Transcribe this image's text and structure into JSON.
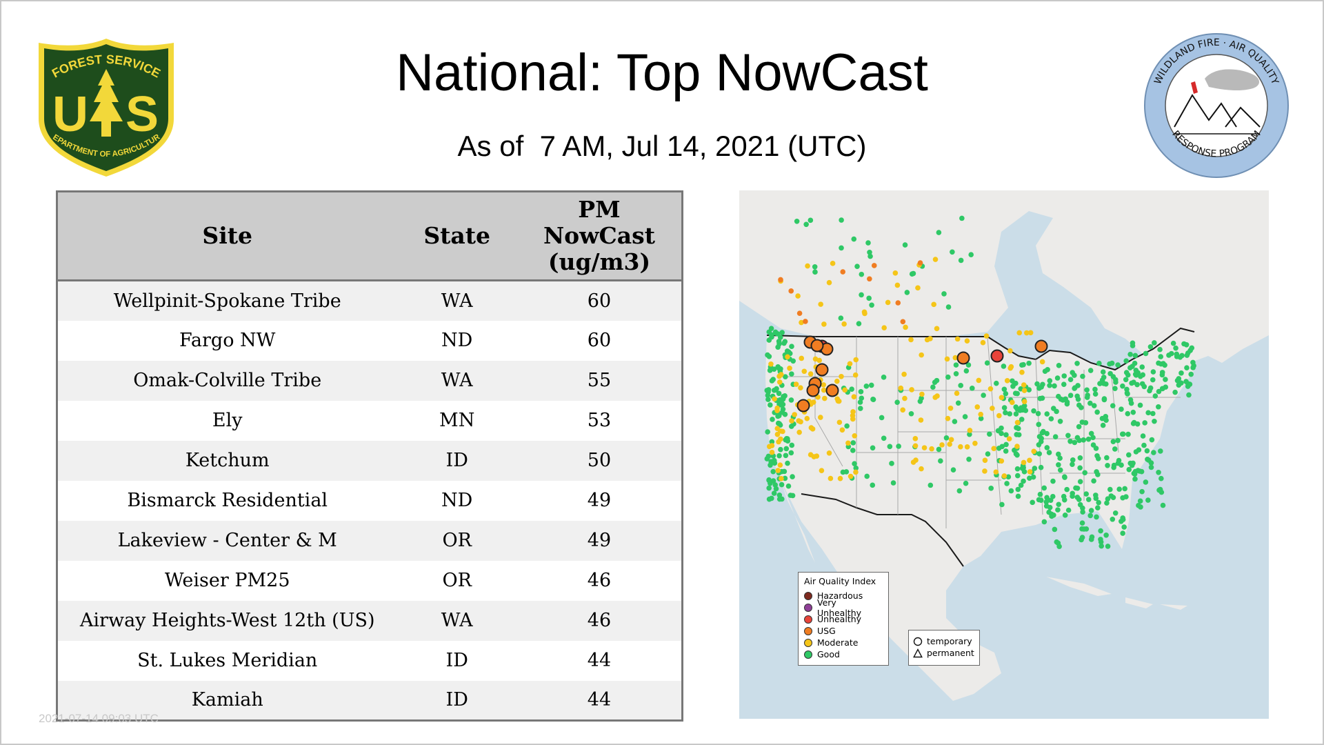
{
  "header": {
    "title": "National: Top NowCast",
    "subtitle": "As of  7 AM, Jul 14, 2021 (UTC)"
  },
  "logos": {
    "left": {
      "top_text": "FOREST SERVICE",
      "letter_left": "U",
      "letter_right": "S",
      "bottom_text": "DEPARTMENT OF AGRICULTURE",
      "color_green": "#1e4d1c",
      "color_gold": "#f2d83a",
      "icon": "pine-tree-icon"
    },
    "right": {
      "top_text": "WILDLAND FIRE · AIR QUALITY",
      "bottom_text": "RESPONSE PROGRAM",
      "color_ring": "#a6c3e3",
      "icon": "mountains-smoke-icon"
    }
  },
  "table": {
    "headers": {
      "site": "Site",
      "state": "State",
      "pm_line1": "PM",
      "pm_line2": "NowCast",
      "pm_line3": "(ug/m3)"
    },
    "rows": [
      {
        "site": "Wellpinit-Spokane Tribe",
        "state": "WA",
        "value": "60"
      },
      {
        "site": "Fargo NW",
        "state": "ND",
        "value": "60"
      },
      {
        "site": "Omak-Colville Tribe",
        "state": "WA",
        "value": "55"
      },
      {
        "site": "Ely",
        "state": "MN",
        "value": "53"
      },
      {
        "site": "Ketchum",
        "state": "ID",
        "value": "50"
      },
      {
        "site": "Bismarck Residential",
        "state": "ND",
        "value": "49"
      },
      {
        "site": "Lakeview - Center & M",
        "state": "OR",
        "value": "49"
      },
      {
        "site": "Weiser PM25",
        "state": "OR",
        "value": "46"
      },
      {
        "site": "Airway Heights-West 12th (US)",
        "state": "WA",
        "value": "46"
      },
      {
        "site": "St. Lukes Meridian",
        "state": "ID",
        "value": "44"
      },
      {
        "site": "Kamiah",
        "state": "ID",
        "value": "44"
      }
    ]
  },
  "footer": {
    "date": "2021-07-14 09:03 UTC"
  },
  "map": {
    "colors": {
      "water": "#cbdde8",
      "land": "#ecebe9",
      "border": "#1a1a1a"
    },
    "legend": {
      "title": "Air Quality Index",
      "items": [
        {
          "label": "Hazardous",
          "color": "#7e2a1f"
        },
        {
          "label": "Very Unhealthy",
          "color": "#8f3f97"
        },
        {
          "label": "Unhealthy",
          "color": "#e8443a"
        },
        {
          "label": "USG",
          "color": "#f07d22"
        },
        {
          "label": "Moderate",
          "color": "#f5c518"
        },
        {
          "label": "Good",
          "color": "#2fc866"
        }
      ]
    },
    "shape_legend": {
      "temporary": "temporary",
      "permanent": "permanent"
    }
  }
}
